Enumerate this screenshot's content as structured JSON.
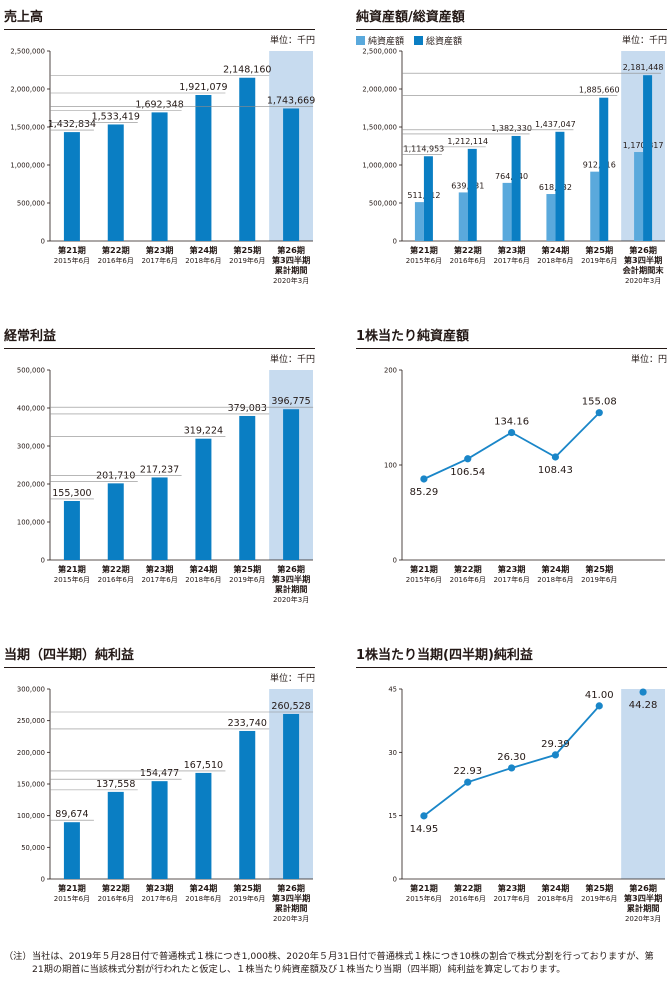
{
  "colors": {
    "bar": "#0a7ec3",
    "bar_light": "#5aa9dc",
    "highlight": "#c7dbef",
    "line": "#1a86c8",
    "axis": "#231815",
    "grid": "#8c8c8c"
  },
  "panels": {
    "sales": {
      "title": "売上高",
      "unit": "単位：千円"
    },
    "assets": {
      "title": "純資産額/総資産額",
      "unit": "単位：千円",
      "legend": [
        "純資産額",
        "総資産額"
      ]
    },
    "ordinary": {
      "title": "経常利益",
      "unit": "単位：千円"
    },
    "bps": {
      "title": "1株当たり純資産額",
      "unit": "単位：円"
    },
    "netincome": {
      "title": "当期（四半期）純利益",
      "unit": "単位：千円"
    },
    "eps": {
      "title": "1株当たり当期(四半期)純利益"
    }
  },
  "chart_data": [
    {
      "id": "sales",
      "type": "bar",
      "categories": [
        [
          "第21期",
          "2015年6月"
        ],
        [
          "第22期",
          "2016年6月"
        ],
        [
          "第23期",
          "2017年6月"
        ],
        [
          "第24期",
          "2018年6月"
        ],
        [
          "第25期",
          "2019年6月"
        ],
        [
          "第26期",
          "第3四半期",
          "累計期間",
          "2020年3月"
        ]
      ],
      "series": [
        {
          "values": [
            1432834,
            1533419,
            1692348,
            1921079,
            2148160,
            1743669
          ]
        }
      ],
      "data_labels": [
        "1,432,834",
        "1,533,419",
        "1,692,348",
        "1,921,079",
        "2,148,160",
        "1,743,669"
      ],
      "yticks": [
        "0",
        "500,000",
        "1,000,000",
        "1,500,000",
        "2,000,000",
        "2,500,000"
      ],
      "ylim": [
        0,
        2500000
      ],
      "highlight_last": true
    },
    {
      "id": "assets",
      "type": "bar",
      "categories": [
        [
          "第21期",
          "2015年6月"
        ],
        [
          "第22期",
          "2016年6月"
        ],
        [
          "第23期",
          "2017年6月"
        ],
        [
          "第24期",
          "2018年6月"
        ],
        [
          "第25期",
          "2019年6月"
        ],
        [
          "第26期",
          "第3四半期",
          "会計期間末",
          "2020年3月"
        ]
      ],
      "series": [
        {
          "name": "純資産額",
          "values": [
            511712,
            639231,
            764740,
            618032,
            912416,
            1170817
          ],
          "labels": [
            "511,712",
            "639,231",
            "764,740",
            "618,032",
            "912,416",
            "1,170,817"
          ]
        },
        {
          "name": "総資産額",
          "values": [
            1114953,
            1212114,
            1382330,
            1437047,
            1885660,
            2181448
          ],
          "labels": [
            "1,114,953",
            "1,212,114",
            "1,382,330",
            "1,437,047",
            "1,885,660",
            "2,181,448"
          ]
        }
      ],
      "yticks": [
        "0",
        "500,000",
        "1,000,000",
        "1,500,000",
        "2,000,000",
        "2,500,000"
      ],
      "ylim": [
        0,
        2500000
      ],
      "highlight_last": true
    },
    {
      "id": "ordinary",
      "type": "bar",
      "categories": [
        [
          "第21期",
          "2015年6月"
        ],
        [
          "第22期",
          "2016年6月"
        ],
        [
          "第23期",
          "2017年6月"
        ],
        [
          "第24期",
          "2018年6月"
        ],
        [
          "第25期",
          "2019年6月"
        ],
        [
          "第26期",
          "第3四半期",
          "累計期間",
          "2020年3月"
        ]
      ],
      "series": [
        {
          "values": [
            155300,
            201710,
            217237,
            319224,
            379083,
            396775
          ]
        }
      ],
      "data_labels": [
        "155,300",
        "201,710",
        "217,237",
        "319,224",
        "379,083",
        "396,775"
      ],
      "yticks": [
        "0",
        "100,000",
        "200,000",
        "300,000",
        "400,000",
        "500,000"
      ],
      "ylim": [
        0,
        500000
      ],
      "highlight_last": true
    },
    {
      "id": "bps",
      "type": "line",
      "categories": [
        [
          "第21期",
          "2015年6月"
        ],
        [
          "第22期",
          "2016年6月"
        ],
        [
          "第23期",
          "2017年6月"
        ],
        [
          "第24期",
          "2018年6月"
        ],
        [
          "第25期",
          "2019年6月"
        ]
      ],
      "values": [
        85.29,
        106.54,
        134.16,
        108.43,
        155.08
      ],
      "data_labels": [
        "85.29",
        "106.54",
        "134.16",
        "108.43",
        "155.08"
      ],
      "yticks": [
        "0",
        "100",
        "200"
      ],
      "ylim": [
        0,
        200
      ],
      "slots": 6,
      "highlight_last": false
    },
    {
      "id": "netincome",
      "type": "bar",
      "categories": [
        [
          "第21期",
          "2015年6月"
        ],
        [
          "第22期",
          "2016年6月"
        ],
        [
          "第23期",
          "2017年6月"
        ],
        [
          "第24期",
          "2018年6月"
        ],
        [
          "第25期",
          "2019年6月"
        ],
        [
          "第26期",
          "第3四半期",
          "累計期間",
          "2020年3月"
        ]
      ],
      "series": [
        {
          "values": [
            89674,
            137558,
            154477,
            167510,
            233740,
            260528
          ]
        }
      ],
      "data_labels": [
        "89,674",
        "137,558",
        "154,477",
        "167,510",
        "233,740",
        "260,528"
      ],
      "yticks": [
        "0",
        "50,000",
        "100,000",
        "150,000",
        "200,000",
        "250,000",
        "300,000"
      ],
      "ylim": [
        0,
        300000
      ],
      "highlight_last": true
    },
    {
      "id": "eps",
      "type": "line",
      "categories": [
        [
          "第21期",
          "2015年6月"
        ],
        [
          "第22期",
          "2016年6月"
        ],
        [
          "第23期",
          "2017年6月"
        ],
        [
          "第24期",
          "2018年6月"
        ],
        [
          "第25期",
          "2019年6月"
        ],
        [
          "第26期",
          "第3四半期",
          "累計期間",
          "2020年3月"
        ]
      ],
      "values": [
        14.95,
        22.93,
        26.3,
        29.39,
        41.0,
        44.28
      ],
      "data_labels": [
        "14.95",
        "22.93",
        "26.30",
        "29.39",
        "41.00",
        "44.28"
      ],
      "yticks": [
        "0",
        "15",
        "30",
        "45"
      ],
      "ylim": [
        0,
        45
      ],
      "slots": 6,
      "connect_last": false,
      "highlight_last": true
    }
  ],
  "note": {
    "tag": "（注）",
    "text": "当社は、2019年５月28日付で普通株式１株につき1,000株、2020年５月31日付で普通株式１株につき10株の割合で株式分割を行っておりますが、第21期の期首に当該株式分割が行われたと仮定し、１株当たり純資産額及び１株当たり当期（四半期）純利益を算定しております。"
  }
}
